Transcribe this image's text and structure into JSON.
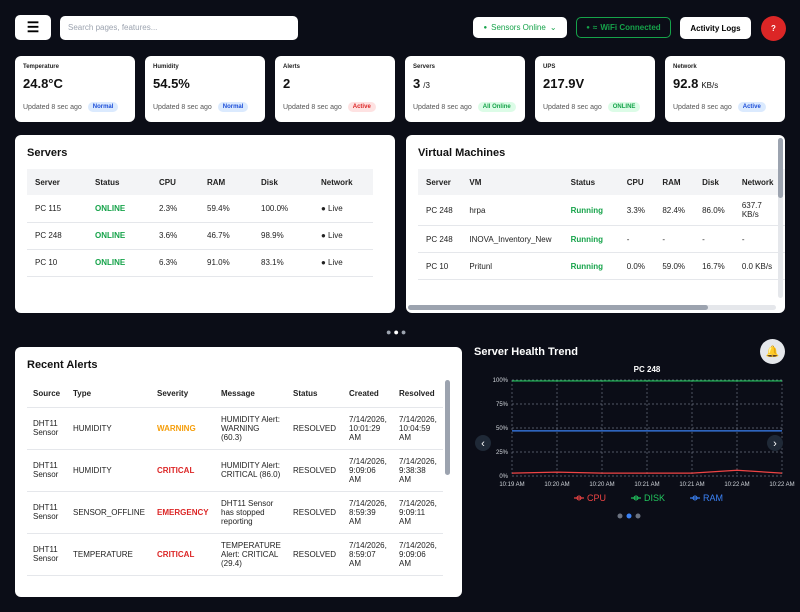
{
  "topbar": {
    "search_placeholder": "Search pages, features...",
    "sensors": "Sensors Online",
    "wifi": "WiFi Connected",
    "logs": "Activity Logs",
    "help": "?"
  },
  "cards": [
    {
      "label": "Temperature",
      "value": "24.8°C",
      "updated": "Updated 8 sec ago",
      "badge": "Normal",
      "badge_color": "blue"
    },
    {
      "label": "Humidity",
      "value": "54.5%",
      "updated": "Updated 8 sec ago",
      "badge": "Normal",
      "badge_color": "blue"
    },
    {
      "label": "Alerts",
      "value": "2",
      "updated": "Updated 8 sec ago",
      "badge": "Active",
      "badge_color": "red"
    },
    {
      "label": "Servers",
      "value": "3",
      "unit": "/3",
      "updated": "Updated 8 sec ago",
      "badge": "All Online",
      "badge_color": "green"
    },
    {
      "label": "UPS",
      "value": "217.9V",
      "updated": "Updated 8 sec ago",
      "badge": "ONLINE",
      "badge_color": "green"
    },
    {
      "label": "Network",
      "value": "92.8",
      "unit": "KB/s",
      "updated": "Updated 8 sec ago",
      "badge": "Active",
      "badge_color": "blue"
    }
  ],
  "servers": {
    "title": "Servers",
    "headers": [
      "Server",
      "Status",
      "CPU",
      "RAM",
      "Disk",
      "Network"
    ],
    "rows": [
      [
        "PC 115",
        "ONLINE",
        "2.3%",
        "59.4%",
        "100.0%",
        "● Live"
      ],
      [
        "PC 248",
        "ONLINE",
        "3.6%",
        "46.7%",
        "98.9%",
        "● Live"
      ],
      [
        "PC 10",
        "ONLINE",
        "6.3%",
        "91.0%",
        "83.1%",
        "● Live"
      ]
    ],
    "accent": {
      "column": 1,
      "colors": [
        "#16a34a",
        "#16a34a",
        "#16a34a"
      ]
    }
  },
  "vms": {
    "title": "Virtual Machines",
    "headers": [
      "Server",
      "VM",
      "Status",
      "CPU",
      "RAM",
      "Disk",
      "Network"
    ],
    "rows": [
      [
        "PC 248",
        "hrpa",
        "Running",
        "3.3%",
        "82.4%",
        "86.0%",
        "637.7 KB/s"
      ],
      [
        "PC 248",
        "INOVA_Inventory_New",
        "Running",
        "-",
        "-",
        "-",
        "-"
      ],
      [
        "PC 10",
        "Pritunl",
        "Running",
        "0.0%",
        "59.0%",
        "16.7%",
        "0.0 KB/s"
      ]
    ],
    "accent": {
      "column": 2,
      "colors": [
        "#16a34a",
        "#16a34a",
        "#16a34a"
      ]
    }
  },
  "alerts": {
    "title": "Recent Alerts",
    "headers": [
      "Source",
      "Type",
      "Severity",
      "Message",
      "Status",
      "Created",
      "Resolved"
    ],
    "rows": [
      [
        "DHT11 Sensor",
        "HUMIDITY",
        "WARNING",
        "HUMIDITY Alert: WARNING (60.3)",
        "RESOLVED",
        "7/14/2026, 10:01:29 AM",
        "7/14/2026, 10:04:59 AM"
      ],
      [
        "DHT11 Sensor",
        "HUMIDITY",
        "CRITICAL",
        "HUMIDITY Alert: CRITICAL (86.0)",
        "RESOLVED",
        "7/14/2026, 9:09:06 AM",
        "7/14/2026, 9:38:38 AM"
      ],
      [
        "DHT11 Sensor",
        "SENSOR_OFFLINE",
        "EMERGENCY",
        "DHT11 Sensor has stopped reporting",
        "RESOLVED",
        "7/14/2026, 8:59:39 AM",
        "7/14/2026, 9:09:11 AM"
      ],
      [
        "DHT11 Sensor",
        "TEMPERATURE",
        "CRITICAL",
        "TEMPERATURE Alert: CRITICAL (29.4)",
        "RESOLVED",
        "7/14/2026, 8:59:07 AM",
        "7/14/2026, 9:09:06 AM"
      ]
    ],
    "accent": {
      "column": 2,
      "colors": [
        "#f59e0b",
        "#dc2626",
        "#dc2626",
        "#dc2626"
      ]
    }
  },
  "trend": {
    "title": "Server Health Trend",
    "chart": {
      "type": "line",
      "title": "PC 248",
      "categories": [
        "10:19 AM",
        "10:20 AM",
        "10:20 AM",
        "10:21 AM",
        "10:21 AM",
        "10:22 AM",
        "10:22 AM"
      ],
      "series": [
        {
          "name": "CPU",
          "color": "#ef4444",
          "values": [
            3,
            4,
            3,
            3,
            3,
            6,
            3
          ]
        },
        {
          "name": "DISK",
          "color": "#22c55e",
          "values": [
            99,
            99,
            99,
            99,
            99,
            99,
            99
          ]
        },
        {
          "name": "RAM",
          "color": "#3b82f6",
          "values": [
            47,
            47,
            47,
            47,
            47,
            47,
            47
          ]
        }
      ],
      "ylim": [
        0,
        100
      ],
      "yticks": [
        {
          "value": 0,
          "label": "0%"
        },
        {
          "value": 25,
          "label": "25%"
        },
        {
          "value": 50,
          "label": "50%"
        },
        {
          "value": 75,
          "label": "75%"
        },
        {
          "value": 100,
          "label": "100%"
        }
      ],
      "grid": true
    }
  }
}
